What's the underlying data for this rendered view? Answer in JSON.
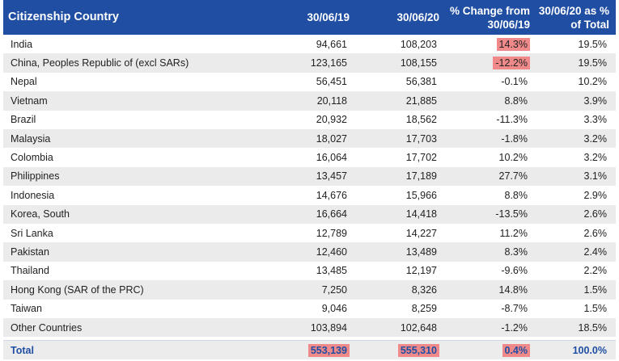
{
  "header": {
    "columns": [
      "Citizenship Country",
      "30/06/19",
      "30/06/20",
      "% Change from 30/06/19",
      "30/06/20 as % of Total"
    ]
  },
  "table": {
    "rows": [
      [
        "India",
        "94,661",
        "108,203",
        "14.3%",
        "19.5%"
      ],
      [
        "China, Peoples Republic of (excl SARs)",
        "123,165",
        "108,155",
        "-12.2%",
        "19.5%"
      ],
      [
        "Nepal",
        "56,451",
        "56,381",
        "-0.1%",
        "10.2%"
      ],
      [
        "Vietnam",
        "20,118",
        "21,885",
        "8.8%",
        "3.9%"
      ],
      [
        "Brazil",
        "20,932",
        "18,562",
        "-11.3%",
        "3.3%"
      ],
      [
        "Malaysia",
        "18,027",
        "17,703",
        "-1.8%",
        "3.2%"
      ],
      [
        "Colombia",
        "16,064",
        "17,702",
        "10.2%",
        "3.2%"
      ],
      [
        "Philippines",
        "13,457",
        "17,189",
        "27.7%",
        "3.1%"
      ],
      [
        "Indonesia",
        "14,676",
        "15,966",
        "8.8%",
        "2.9%"
      ],
      [
        "Korea, South",
        "16,664",
        "14,418",
        "-13.5%",
        "2.6%"
      ],
      [
        "Sri Lanka",
        "12,789",
        "14,227",
        "11.2%",
        "2.6%"
      ],
      [
        "Pakistan",
        "12,460",
        "13,489",
        "8.3%",
        "2.4%"
      ],
      [
        "Thailand",
        "13,485",
        "12,197",
        "-9.6%",
        "2.2%"
      ],
      [
        "Hong Kong (SAR of the PRC)",
        "7,250",
        "8,326",
        "14.8%",
        "1.5%"
      ],
      [
        "Taiwan",
        "9,046",
        "8,259",
        "-8.7%",
        "1.5%"
      ],
      [
        "Other Countries",
        "103,894",
        "102,648",
        "-1.2%",
        "18.5%"
      ]
    ]
  },
  "total": [
    "Total",
    "553,139",
    "555,310",
    "0.4%",
    "100.0%"
  ]
}
